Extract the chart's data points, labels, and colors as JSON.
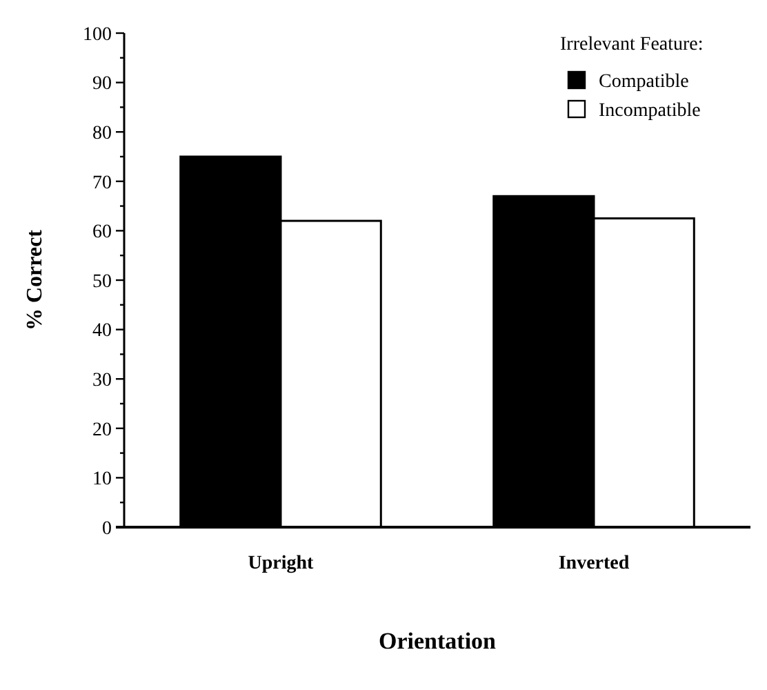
{
  "chart_data": {
    "type": "bar",
    "xlabel": "Orientation",
    "ylabel": "% Correct",
    "legend_title": "Irrelevant Feature:",
    "categories": [
      "Upright",
      "Inverted"
    ],
    "series": [
      {
        "name": "Compatible",
        "color": "#000000",
        "values": [
          75,
          67
        ]
      },
      {
        "name": "Incompatible",
        "color": "#ffffff",
        "values": [
          62,
          62.5
        ]
      }
    ],
    "ylim": [
      0,
      100
    ],
    "yticks": [
      0,
      {
        "value": 5,
        "label": null
      },
      10,
      {
        "value": 15,
        "label": null
      },
      20,
      {
        "value": 25,
        "label": null
      },
      30,
      {
        "value": 35,
        "label": null
      },
      40,
      {
        "value": 45,
        "label": null
      },
      50,
      {
        "value": 55,
        "label": null
      },
      60,
      {
        "value": 65,
        "label": null
      },
      70,
      {
        "value": 75,
        "label": null
      },
      80,
      {
        "value": 85,
        "label": null
      },
      90,
      {
        "value": 95,
        "label": null
      },
      100
    ],
    "grid": false,
    "legend": "top right"
  }
}
